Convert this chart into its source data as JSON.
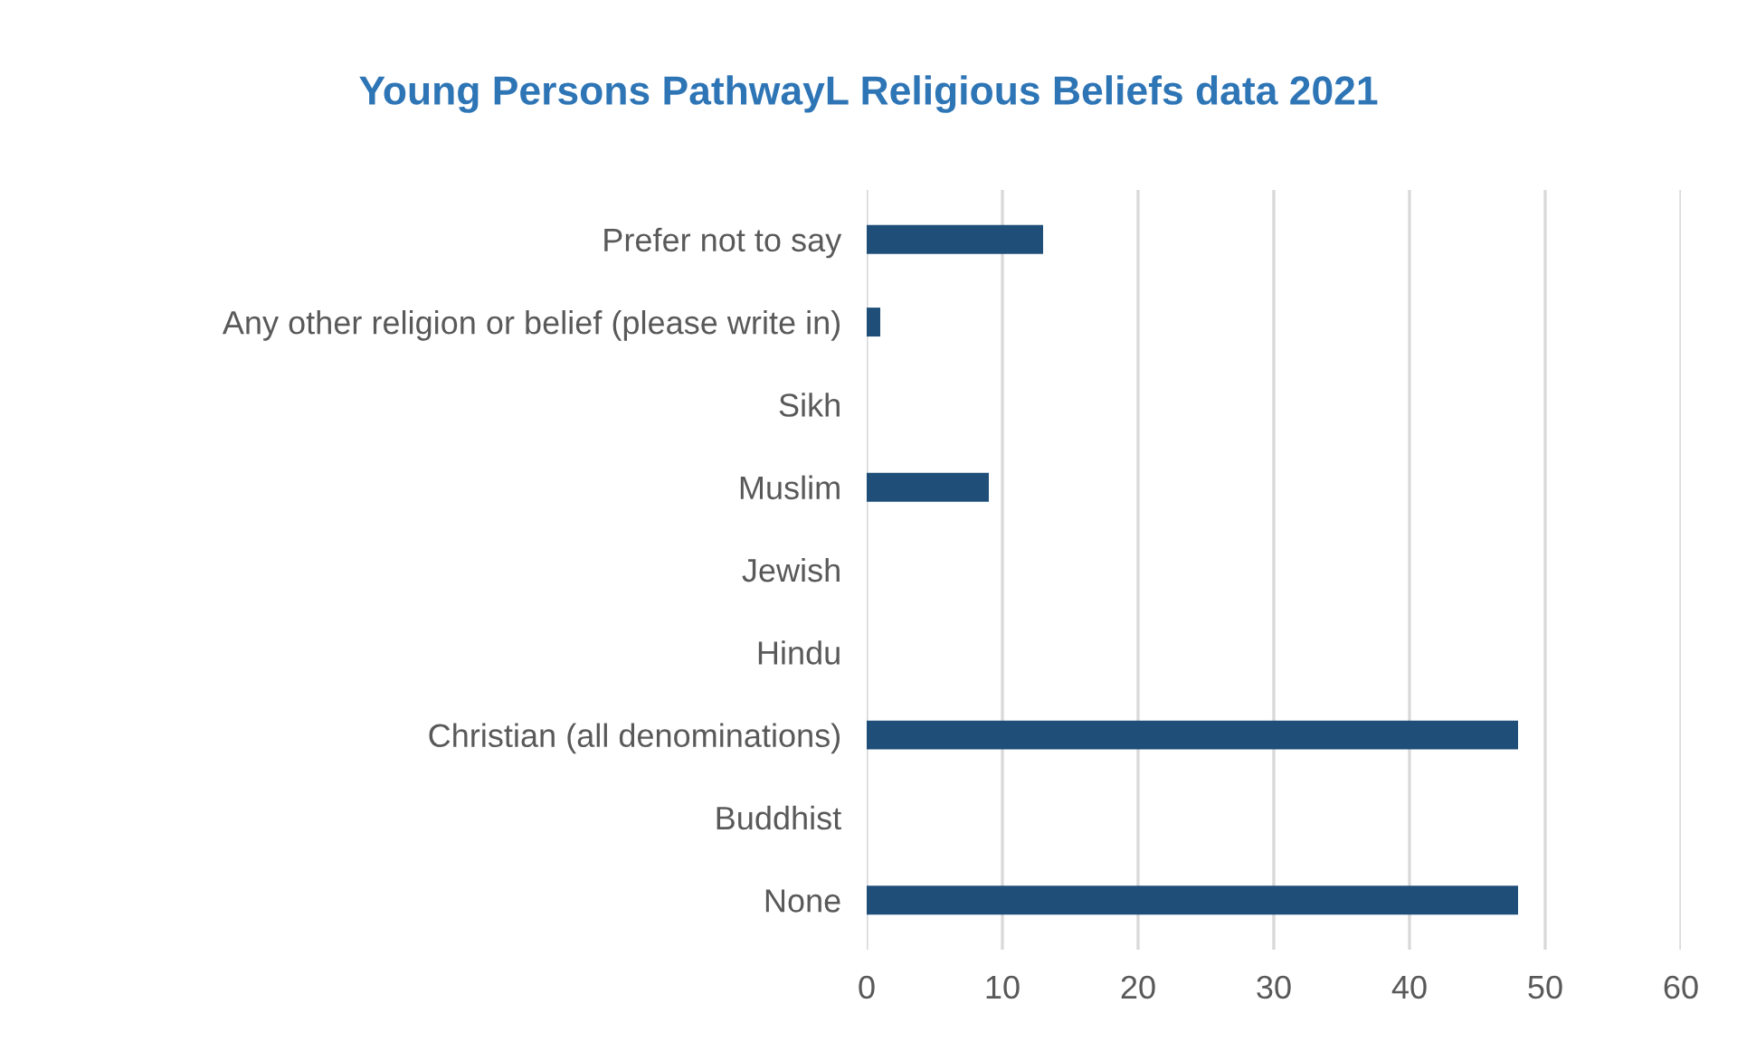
{
  "chart_data": {
    "type": "bar",
    "orientation": "horizontal",
    "title": "Young Persons PathwayL Religious Beliefs data 2021",
    "categories": [
      "Prefer not to say",
      "Any other religion or belief (please write in)",
      "Sikh",
      "Muslim",
      "Jewish",
      "Hindu",
      "Christian (all denominations)",
      "Buddhist",
      "None"
    ],
    "values": [
      13,
      1,
      0,
      9,
      0,
      0,
      48,
      0,
      48
    ],
    "color": "#1f4e79",
    "xlim": [
      0,
      60
    ],
    "xticks": [
      0,
      10,
      20,
      30,
      40,
      50,
      60
    ],
    "grid": "x",
    "legend": false
  }
}
